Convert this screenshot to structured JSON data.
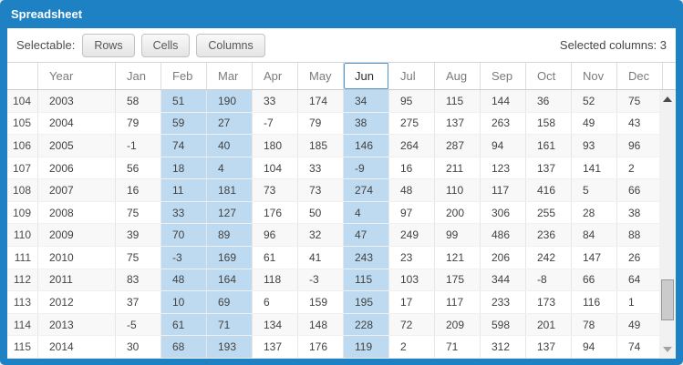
{
  "window": {
    "title": "Spreadsheet"
  },
  "toolbar": {
    "label": "Selectable:",
    "buttons": [
      {
        "label": "Rows"
      },
      {
        "label": "Cells"
      },
      {
        "label": "Columns"
      }
    ],
    "status": "Selected columns: 3"
  },
  "grid": {
    "columns": [
      "",
      "Year",
      "Jan",
      "Feb",
      "Mar",
      "Apr",
      "May",
      "Jun",
      "Jul",
      "Aug",
      "Sep",
      "Oct",
      "Nov",
      "Dec"
    ],
    "focused_column": "Jun",
    "selected_columns": [
      "Feb",
      "Mar",
      "Jun"
    ],
    "rows": [
      {
        "num": 104,
        "year": 2003,
        "values": [
          58,
          51,
          190,
          33,
          174,
          34,
          95,
          115,
          144,
          36,
          52,
          75
        ]
      },
      {
        "num": 105,
        "year": 2004,
        "values": [
          79,
          59,
          27,
          -7,
          79,
          38,
          275,
          137,
          263,
          158,
          49,
          43
        ]
      },
      {
        "num": 106,
        "year": 2005,
        "values": [
          -1,
          74,
          40,
          180,
          185,
          146,
          264,
          287,
          94,
          161,
          93,
          96
        ]
      },
      {
        "num": 107,
        "year": 2006,
        "values": [
          56,
          18,
          4,
          104,
          33,
          -9,
          16,
          211,
          123,
          137,
          141,
          2
        ]
      },
      {
        "num": 108,
        "year": 2007,
        "values": [
          16,
          11,
          181,
          73,
          73,
          274,
          48,
          110,
          117,
          416,
          5,
          66
        ]
      },
      {
        "num": 109,
        "year": 2008,
        "values": [
          75,
          33,
          127,
          176,
          50,
          4,
          97,
          200,
          306,
          255,
          28,
          38
        ]
      },
      {
        "num": 110,
        "year": 2009,
        "values": [
          39,
          70,
          89,
          96,
          32,
          47,
          249,
          99,
          486,
          236,
          84,
          88
        ]
      },
      {
        "num": 111,
        "year": 2010,
        "values": [
          75,
          -3,
          169,
          61,
          41,
          243,
          23,
          121,
          206,
          242,
          147,
          26
        ]
      },
      {
        "num": 112,
        "year": 2011,
        "values": [
          83,
          48,
          164,
          118,
          -3,
          115,
          103,
          175,
          344,
          -8,
          66,
          64
        ]
      },
      {
        "num": 113,
        "year": 2012,
        "values": [
          37,
          10,
          69,
          6,
          159,
          195,
          17,
          117,
          233,
          173,
          116,
          1
        ]
      },
      {
        "num": 114,
        "year": 2013,
        "values": [
          -5,
          61,
          71,
          134,
          148,
          228,
          72,
          209,
          598,
          201,
          78,
          49
        ]
      },
      {
        "num": 115,
        "year": 2014,
        "values": [
          30,
          68,
          193,
          137,
          176,
          119,
          2,
          71,
          312,
          137,
          94,
          74
        ]
      }
    ]
  },
  "scrollbar": {
    "up_icon": "scroll-up-icon",
    "down_icon": "scroll-down-icon"
  },
  "colors": {
    "frame_blue": "#1e81c4",
    "selection_blue": "#bedaf0",
    "focus_border": "#4f94cd"
  }
}
